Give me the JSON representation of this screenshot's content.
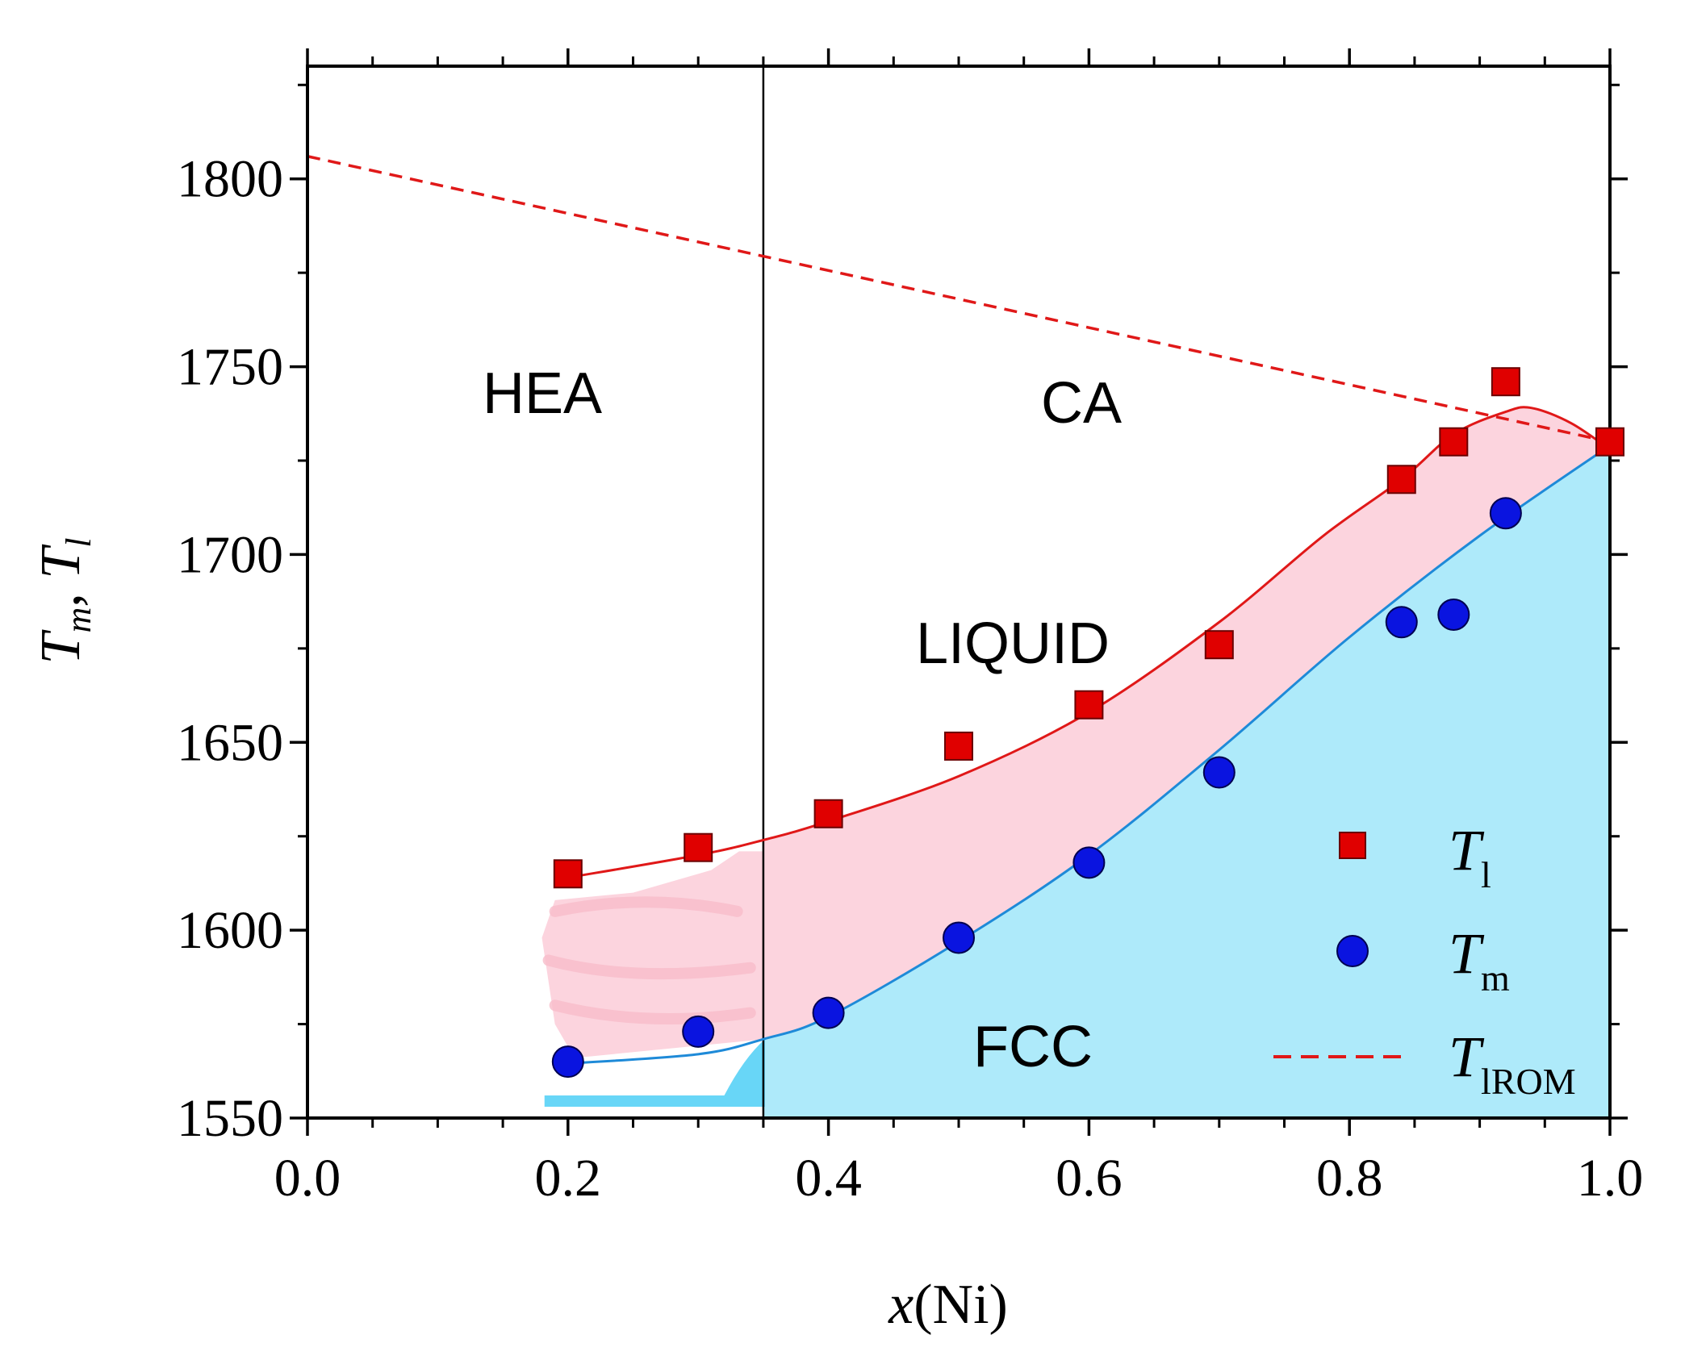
{
  "chart_data": {
    "type": "scatter",
    "title": "",
    "xlabel": {
      "var": "x",
      "rest": "(Ni)"
    },
    "ylabel": {
      "main1": "T",
      "sub1": "m",
      "sep": ", ",
      "main2": "T",
      "sub2": "l"
    },
    "xlim": [
      0.0,
      1.0
    ],
    "ylim": [
      1550,
      1830
    ],
    "xticks": [
      0.0,
      0.2,
      0.4,
      0.6,
      0.8,
      1.0
    ],
    "xtick_labels": [
      "0.0",
      "0.2",
      "0.4",
      "0.6",
      "0.8",
      "1.0"
    ],
    "yticks": [
      1550,
      1600,
      1650,
      1700,
      1750,
      1800
    ],
    "ytick_labels": [
      "1550",
      "1600",
      "1650",
      "1700",
      "1750",
      "1800"
    ],
    "divider_x": 0.35,
    "regions": {
      "hea": "HEA",
      "ca": "CA",
      "liquid": "LIQUID",
      "fcc": "FCC"
    },
    "series": [
      {
        "name": "T_l",
        "marker": "square",
        "color": "#e00000",
        "x": [
          0.2,
          0.3,
          0.4,
          0.5,
          0.6,
          0.7,
          0.84,
          0.88,
          0.92,
          1.0
        ],
        "y": [
          1615,
          1622,
          1631,
          1649,
          1660,
          1676,
          1720,
          1730,
          1746,
          1730
        ]
      },
      {
        "name": "T_m",
        "marker": "circle",
        "color": "#0a14e0",
        "x": [
          0.2,
          0.3,
          0.4,
          0.5,
          0.6,
          0.7,
          0.84,
          0.88,
          0.92
        ],
        "y": [
          1565,
          1573,
          1578,
          1598,
          1618,
          1642,
          1682,
          1684,
          1711
        ]
      }
    ],
    "fit_liquidus": {
      "color": "#e01818",
      "x": [
        0.2,
        0.3,
        0.35,
        0.4,
        0.5,
        0.6,
        0.7,
        0.78,
        0.84,
        0.88,
        0.92,
        0.94,
        0.97,
        1.0
      ],
      "y": [
        1614,
        1620,
        1624,
        1629,
        1641,
        1658,
        1682,
        1705,
        1720,
        1732,
        1738,
        1739,
        1735,
        1728
      ]
    },
    "fit_solidus": {
      "color": "#1e8ad8",
      "x": [
        0.2,
        0.3,
        0.35,
        0.4,
        0.5,
        0.6,
        0.7,
        0.8,
        0.9,
        1.0
      ],
      "y": [
        1564.5,
        1567,
        1571,
        1577,
        1597,
        1620,
        1648,
        1678,
        1705,
        1729
      ]
    },
    "iromline": {
      "color": "#e01818",
      "x": [
        0.0,
        1.0
      ],
      "y": [
        1806,
        1730
      ]
    },
    "legend": {
      "position": "bottom-right",
      "items": [
        {
          "marker": "square",
          "main": "T",
          "sub": "l"
        },
        {
          "marker": "circle",
          "main": "T",
          "sub": "m"
        },
        {
          "marker": "dash",
          "main": "T",
          "sub": "lROM"
        }
      ]
    },
    "fill_colors": {
      "liquid": "#fcd4de",
      "fcc": "#aeeafa",
      "hand_pink": "#f8bcc9",
      "hand_blue": "#58d2f6"
    }
  }
}
